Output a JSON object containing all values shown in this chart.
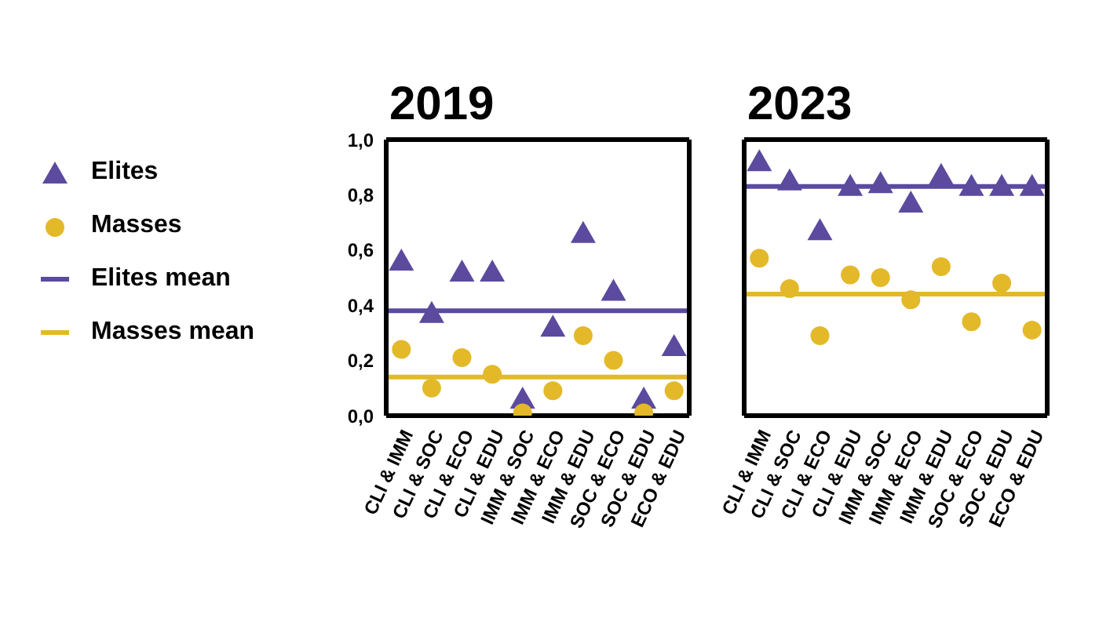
{
  "chart_data": [
    {
      "type": "scatter",
      "title": "2019",
      "categories": [
        "CLI & IMM",
        "CLI & SOC",
        "CLI & ECO",
        "CLI & EDU",
        "IMM & SOC",
        "IMM & ECO",
        "IMM & EDU",
        "SOC & ECO",
        "SOC & EDU",
        "ECO & EDU"
      ],
      "series": [
        {
          "name": "Elites",
          "color": "#5b4a9e",
          "marker": "triangle",
          "values": [
            0.56,
            0.37,
            0.52,
            0.52,
            0.06,
            0.32,
            0.66,
            0.45,
            0.06,
            0.25
          ]
        },
        {
          "name": "Masses",
          "color": "#e3b92a",
          "marker": "circle",
          "values": [
            0.24,
            0.1,
            0.21,
            0.15,
            0.01,
            0.09,
            0.29,
            0.2,
            0.01,
            0.09
          ]
        }
      ],
      "ref_lines": [
        {
          "axis": "y",
          "value": 0.38,
          "label": "Elites mean",
          "color": "#5b4a9e"
        },
        {
          "axis": "y",
          "value": 0.14,
          "label": "Masses mean",
          "color": "#e3b92a"
        }
      ],
      "ylim": [
        0,
        1
      ],
      "yticks": [
        {
          "value": 0,
          "label": "0,0"
        },
        {
          "value": 0.2,
          "label": "0,2"
        },
        {
          "value": 0.4,
          "label": "0,4"
        },
        {
          "value": 0.6,
          "label": "0,6"
        },
        {
          "value": 0.8,
          "label": "0,8"
        },
        {
          "value": 1,
          "label": "1,0"
        }
      ],
      "grid": false,
      "legend": "left"
    },
    {
      "type": "scatter",
      "title": "2023",
      "categories": [
        "CLI & IMM",
        "CLI & SOC",
        "CLI & ECO",
        "CLI & EDU",
        "IMM & SOC",
        "IMM & ECO",
        "IMM & EDU",
        "SOC & ECO",
        "SOC & EDU",
        "ECO & EDU"
      ],
      "series": [
        {
          "color": "#5b4a9e",
          "marker": "triangle",
          "values": [
            0.92,
            0.85,
            0.67,
            0.83,
            0.84,
            0.77,
            0.87,
            0.83,
            0.83,
            0.83
          ]
        },
        {
          "color": "#e3b92a",
          "marker": "circle",
          "values": [
            0.57,
            0.46,
            0.29,
            0.51,
            0.5,
            0.42,
            0.54,
            0.34,
            0.48,
            0.31
          ]
        }
      ],
      "ref_lines": [
        {
          "axis": "y",
          "value": 0.83,
          "color": "#5b4a9e"
        },
        {
          "axis": "y",
          "value": 0.44,
          "color": "#e3b92a"
        }
      ],
      "ylim": [
        0,
        1
      ],
      "tick_labels": "x",
      "grid": false
    }
  ]
}
